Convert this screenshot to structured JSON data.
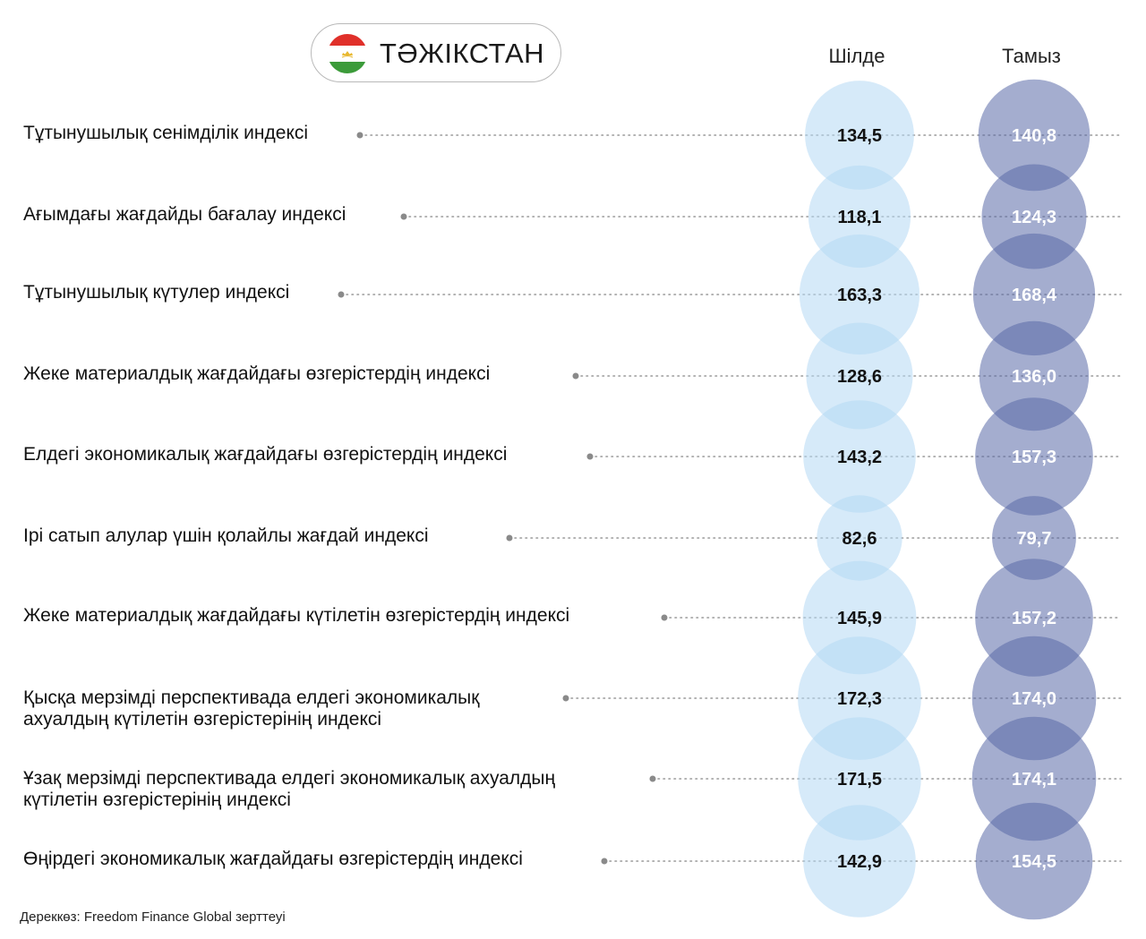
{
  "country": {
    "name": "ТӘЖІКСТАН",
    "flag_icon": "tajikistan-flag-icon",
    "flag_colors": {
      "top": "#e0302a",
      "middle": "#ffffff",
      "bottom": "#3c9b3a",
      "emblem": "#e8b830"
    }
  },
  "chart_data": {
    "type": "bubble",
    "title": "",
    "xlabel": "",
    "ylabel": "",
    "legend": "none",
    "grid": false,
    "categories": [
      "Тұтынушылық сенімділік индексі",
      "Ағымдағы жағдайды бағалау индексі",
      "Тұтынушылық күтулер индексі",
      "Жеке материалдық жағдайдағы өзгерістердің индексі",
      "Елдегі экономикалық жағдайдағы өзгерістердің индексі",
      "Ірі сатып алулар үшін қолайлы жағдай индексі",
      "Жеке материалдық жағдайдағы күтілетін өзгерістердің индексі",
      "Қысқа мерзімді перспективада елдегі экономикалық\nахуалдың күтілетін өзгерістерінің индексі",
      "Ұзақ мерзімді перспективада елдегі экономикалық ахуалдың\nкүтілетін өзгерістерінің индексі",
      "Өңірдегі экономикалық жағдайдағы өзгерістердің индексі"
    ],
    "series": [
      {
        "name": "Шілде",
        "values": [
          134.5,
          118.1,
          163.3,
          128.6,
          143.2,
          82.6,
          145.9,
          172.3,
          171.5,
          142.9
        ],
        "labels": [
          "134,5",
          "118,1",
          "163,3",
          "128,6",
          "143,2",
          "82,6",
          "145,9",
          "172,3",
          "171,5",
          "142,9"
        ],
        "color": "#b5d9f4",
        "label_color": "#111111"
      },
      {
        "name": "Тамыз",
        "values": [
          140.8,
          124.3,
          168.4,
          136.0,
          157.3,
          79.7,
          157.2,
          174.0,
          174.1,
          154.5
        ],
        "labels": [
          "140,8",
          "124,3",
          "168,4",
          "136,0",
          "157,3",
          "79,7",
          "157,2",
          "174,0",
          "174,1",
          "154,5"
        ],
        "color": "#5a69a8",
        "label_color": "#ffffff"
      }
    ]
  },
  "source": "Дереккөз: Freedom Finance Global зерттеуі"
}
